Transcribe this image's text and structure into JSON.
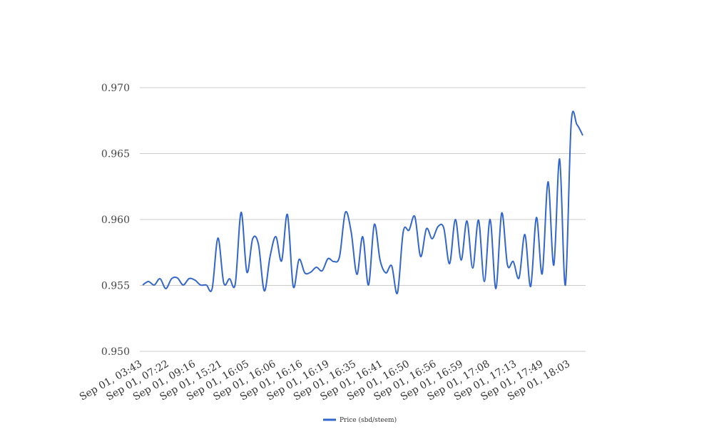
{
  "chart_data": {
    "type": "line",
    "title": "",
    "xlabel": "",
    "ylabel": "",
    "ylim": [
      0.95,
      0.97
    ],
    "yticks": [
      "0.950",
      "0.955",
      "0.960",
      "0.965",
      "0.970"
    ],
    "ytick_values": [
      0.95,
      0.955,
      0.96,
      0.965,
      0.97
    ],
    "xtick_labels": [
      "Sep 01, 03:43",
      "Sep 01, 07:22",
      "Sep 01, 09:16",
      "Sep 01, 15:21",
      "Sep 01, 16:05",
      "Sep 01, 16:06",
      "Sep 01, 16:16",
      "Sep 01, 16:19",
      "Sep 01, 16:35",
      "Sep 01, 16:41",
      "Sep 01, 16:50",
      "Sep 01, 16:56",
      "Sep 01, 16:59",
      "Sep 01, 17:08",
      "Sep 01, 17:13",
      "Sep 01, 17:49",
      "Sep 01, 18:03"
    ],
    "grid": true,
    "legend_position": "bottom",
    "series": [
      {
        "name": "Price (sbd/steem)",
        "color": "#3366cc",
        "values": [
          0.95503,
          0.9553,
          0.95503,
          0.95551,
          0.95476,
          0.95551,
          0.95557,
          0.95503,
          0.95551,
          0.95541,
          0.95503,
          0.95503,
          0.95476,
          0.95859,
          0.95519,
          0.95551,
          0.95514,
          0.96054,
          0.956,
          0.95854,
          0.95811,
          0.95459,
          0.95719,
          0.9587,
          0.95686,
          0.96038,
          0.95492,
          0.95697,
          0.95595,
          0.956,
          0.95638,
          0.95611,
          0.95703,
          0.95681,
          0.95719,
          0.96054,
          0.95908,
          0.95584,
          0.9587,
          0.95503,
          0.95962,
          0.95692,
          0.95595,
          0.95649,
          0.95443,
          0.95908,
          0.95919,
          0.96022,
          0.95719,
          0.9593,
          0.95854,
          0.95946,
          0.95935,
          0.95665,
          0.96,
          0.95692,
          0.95989,
          0.95632,
          0.95995,
          0.9553,
          0.96,
          0.95476,
          0.96049,
          0.95654,
          0.95681,
          0.95557,
          0.95886,
          0.95492,
          0.96015,
          0.95589,
          0.96286,
          0.95654,
          0.96459,
          0.95503,
          0.9673,
          0.96719,
          0.96638
        ]
      }
    ]
  }
}
